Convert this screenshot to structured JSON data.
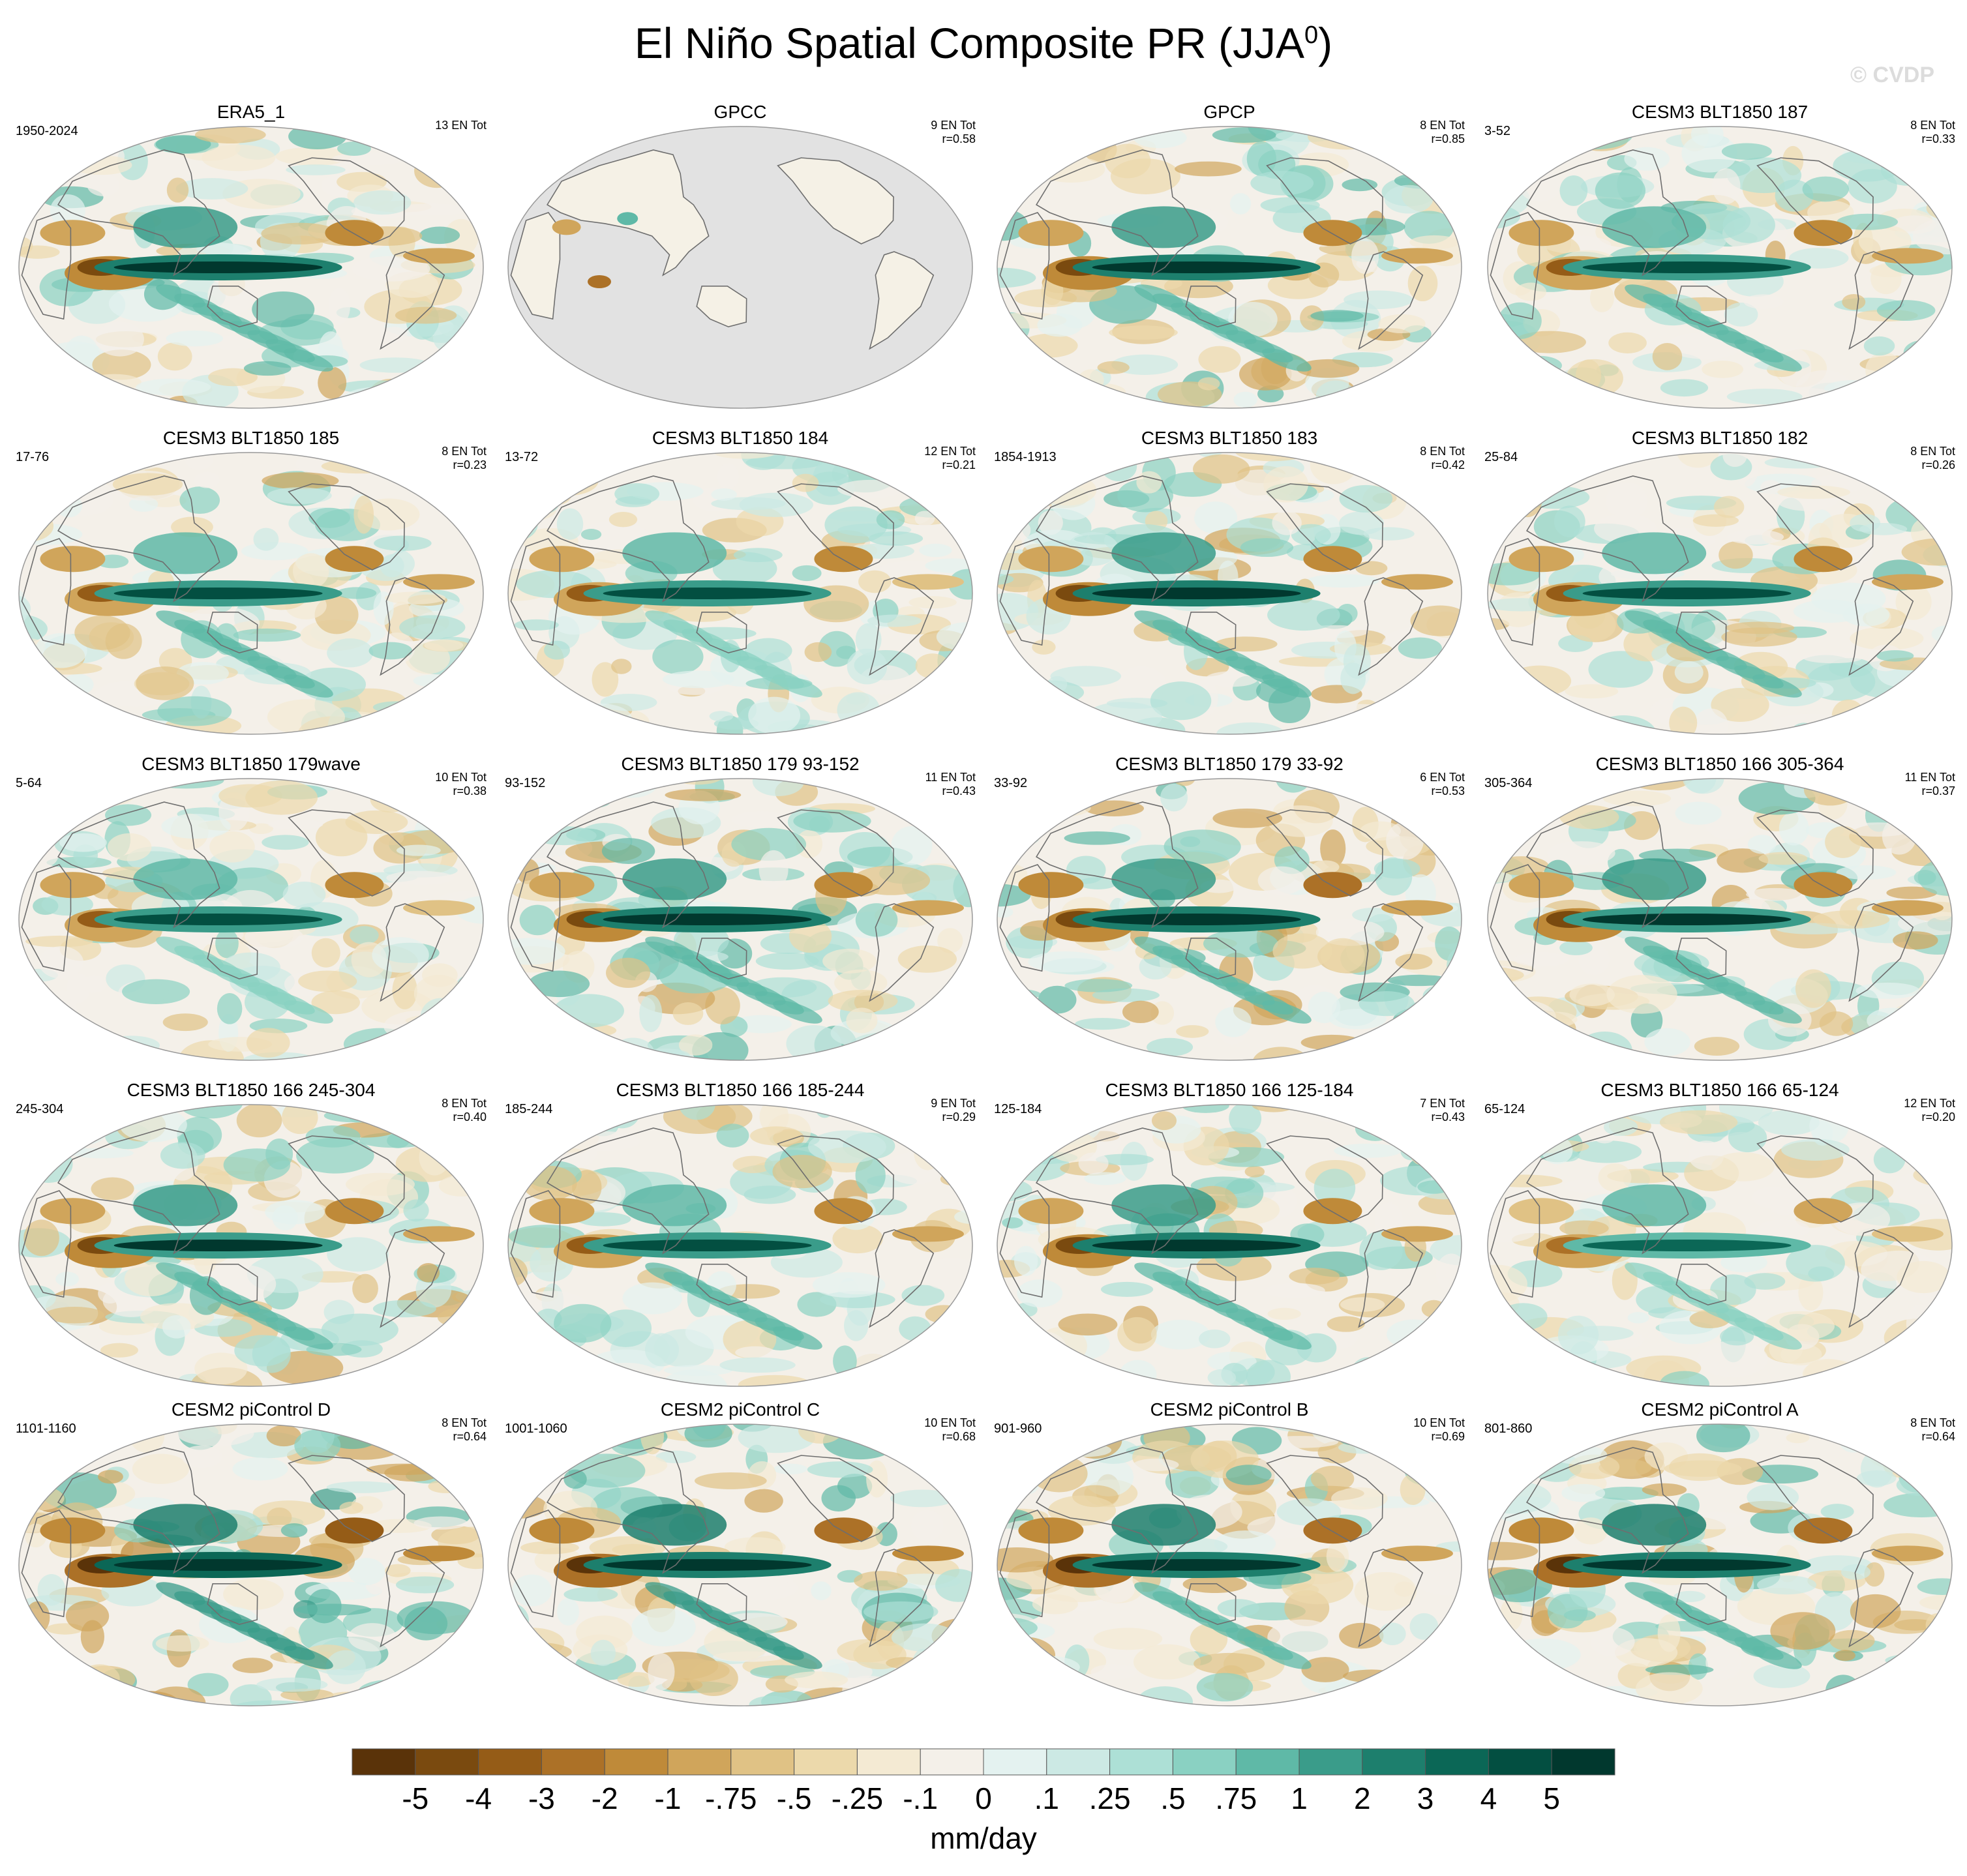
{
  "title": {
    "text": "El Niño Spatial Composite PR (JJA",
    "sup": "0",
    "close": ")"
  },
  "watermark": "© CVDP",
  "panels": [
    {
      "title": "ERA5_1",
      "years": "1950-2024",
      "count": "13 EN Tot",
      "r": "",
      "amp": 1.0,
      "mask": false,
      "seed": 1
    },
    {
      "title": "GPCC",
      "years": "",
      "count": "9 EN Tot",
      "r": "r=0.58",
      "amp": 0.7,
      "mask": true,
      "seed": 2
    },
    {
      "title": "GPCP",
      "years": "",
      "count": "8 EN Tot",
      "r": "r=0.85",
      "amp": 1.0,
      "mask": false,
      "seed": 3
    },
    {
      "title": "CESM3 BLT1850 187",
      "years": "3-52",
      "count": "8 EN Tot",
      "r": "r=0.33",
      "amp": 0.9,
      "mask": false,
      "seed": 4
    },
    {
      "title": "CESM3 BLT1850 185",
      "years": "17-76",
      "count": "8 EN Tot",
      "r": "r=0.23",
      "amp": 0.9,
      "mask": false,
      "seed": 5
    },
    {
      "title": "CESM3 BLT1850 184",
      "years": "13-72",
      "count": "12 EN Tot",
      "r": "r=0.21",
      "amp": 0.85,
      "mask": false,
      "seed": 6
    },
    {
      "title": "CESM3 BLT1850 183",
      "years": "1854-1913",
      "count": "8 EN Tot",
      "r": "r=0.42",
      "amp": 1.0,
      "mask": false,
      "seed": 7
    },
    {
      "title": "CESM3 BLT1850 182",
      "years": "25-84",
      "count": "8 EN Tot",
      "r": "r=0.26",
      "amp": 0.9,
      "mask": false,
      "seed": 8
    },
    {
      "title": "CESM3 BLT1850 179wave",
      "years": "5-64",
      "count": "10 EN Tot",
      "r": "r=0.38",
      "amp": 0.85,
      "mask": false,
      "seed": 9
    },
    {
      "title": "CESM3 BLT1850 179 93-152",
      "years": "93-152",
      "count": "11 EN Tot",
      "r": "r=0.43",
      "amp": 1.0,
      "mask": false,
      "seed": 10
    },
    {
      "title": "CESM3 BLT1850 179 33-92",
      "years": "33-92",
      "count": "6 EN Tot",
      "r": "r=0.53",
      "amp": 1.05,
      "mask": false,
      "seed": 11
    },
    {
      "title": "CESM3 BLT1850 166 305-364",
      "years": "305-364",
      "count": "11 EN Tot",
      "r": "r=0.37",
      "amp": 0.95,
      "mask": false,
      "seed": 12
    },
    {
      "title": "CESM3 BLT1850 166 245-304",
      "years": "245-304",
      "count": "8 EN Tot",
      "r": "r=0.40",
      "amp": 0.95,
      "mask": false,
      "seed": 13
    },
    {
      "title": "CESM3 BLT1850 166 185-244",
      "years": "185-244",
      "count": "9 EN Tot",
      "r": "r=0.29",
      "amp": 0.9,
      "mask": false,
      "seed": 14
    },
    {
      "title": "CESM3 BLT1850 166 125-184",
      "years": "125-184",
      "count": "7 EN Tot",
      "r": "r=0.43",
      "amp": 1.0,
      "mask": false,
      "seed": 15
    },
    {
      "title": "CESM3 BLT1850 166 65-124",
      "years": "65-124",
      "count": "12 EN Tot",
      "r": "r=0.20",
      "amp": 0.75,
      "mask": false,
      "seed": 16
    },
    {
      "title": "CESM2 piControl D",
      "years": "1101-1160",
      "count": "8 EN Tot",
      "r": "r=0.64",
      "amp": 1.2,
      "mask": false,
      "seed": 17
    },
    {
      "title": "CESM2 piControl C",
      "years": "1001-1060",
      "count": "10 EN Tot",
      "r": "r=0.68",
      "amp": 1.15,
      "mask": false,
      "seed": 18
    },
    {
      "title": "CESM2 piControl B",
      "years": "901-960",
      "count": "10 EN Tot",
      "r": "r=0.69",
      "amp": 1.1,
      "mask": false,
      "seed": 19
    },
    {
      "title": "CESM2 piControl A",
      "years": "801-860",
      "count": "8 EN Tot",
      "r": "r=0.64",
      "amp": 1.1,
      "mask": false,
      "seed": 20
    }
  ],
  "colorbar": {
    "colors": [
      "#5a3309",
      "#7a4a0f",
      "#955c17",
      "#ac7127",
      "#bf8a39",
      "#d0a55b",
      "#e0c285",
      "#ecd9ab",
      "#f4ead3",
      "#f4f0e9",
      "#e4f2f0",
      "#cce9e4",
      "#ade0d6",
      "#8ad1c2",
      "#5fb9a7",
      "#3a9c8a",
      "#1d7f6d",
      "#0b6756",
      "#034f41",
      "#01382e"
    ],
    "labels": [
      "-5",
      "-4",
      "-3",
      "-2",
      "-1",
      "-.75",
      "-.5",
      "-.25",
      "-.1",
      "0",
      ".1",
      ".25",
      ".5",
      ".75",
      "1",
      "2",
      "3",
      "4",
      "5"
    ],
    "units": "mm/day"
  }
}
